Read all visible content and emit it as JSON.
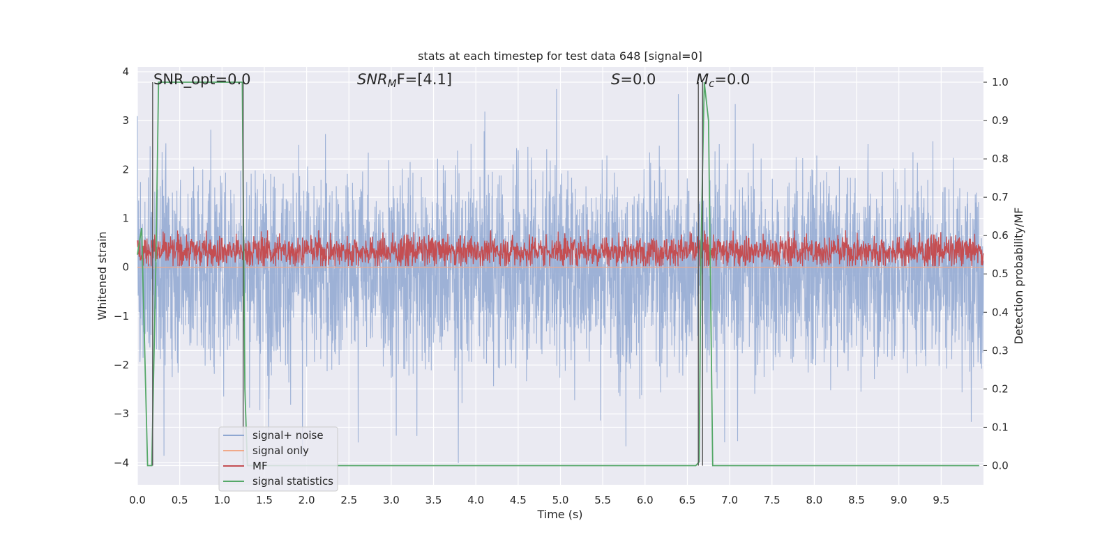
{
  "chart_data": {
    "type": "line",
    "title": "stats at each timestep for test data 648 [signal=0]",
    "xlabel": "Time (s)",
    "ylabel_left": "Whitened strain",
    "ylabel_right": "Detection probability/MF",
    "xlim": [
      0,
      10
    ],
    "ylim_left": [
      -4.45,
      4.1
    ],
    "ylim_right": [
      -0.05,
      1.04
    ],
    "grid": true,
    "legend_position": "lower-left",
    "x_ticks": [
      0.0,
      0.5,
      1.0,
      1.5,
      2.0,
      2.5,
      3.0,
      3.5,
      4.0,
      4.5,
      5.0,
      5.5,
      6.0,
      6.5,
      7.0,
      7.5,
      8.0,
      8.5,
      9.0,
      9.5
    ],
    "x_tick_labels": [
      "0.0",
      "0.5",
      "1.0",
      "1.5",
      "2.0",
      "2.5",
      "3.0",
      "3.5",
      "4.0",
      "4.5",
      "5.0",
      "5.5",
      "6.0",
      "6.5",
      "7.0",
      "7.5",
      "8.0",
      "8.5",
      "9.0",
      "9.5"
    ],
    "y_left_ticks": [
      4,
      3,
      2,
      1,
      0,
      -1,
      -2,
      -3,
      -4
    ],
    "y_left_tick_labels": [
      "4",
      "3",
      "2",
      "1",
      "0",
      "−1",
      "−2",
      "−3",
      "−4"
    ],
    "y_right_ticks": [
      1.0,
      0.9,
      0.8,
      0.7,
      0.6,
      0.5,
      0.4,
      0.3,
      0.2,
      0.1,
      0.0
    ],
    "y_right_tick_labels": [
      "1.0",
      "0.9",
      "0.8",
      "0.7",
      "0.6",
      "0.5",
      "0.4",
      "0.3",
      "0.2",
      "0.1",
      "0.0"
    ],
    "annotations": {
      "snr_opt": "SNR_opt=0.0",
      "snr_mf_italic": "SNR",
      "snr_mf_sub": "M",
      "snr_mf_rest": "F=[4.1]",
      "s_italic": "S",
      "s_rest": "=0.0",
      "mc_italic": "M",
      "mc_sub": "c",
      "mc_rest": "=0.0"
    },
    "legend": [
      {
        "label": "signal+ noise",
        "color": "#8fa7d1"
      },
      {
        "label": "signal only",
        "color": "#f0a98a"
      },
      {
        "label": "MF",
        "color": "#c44e52"
      },
      {
        "label": "signal statistics",
        "color": "#55a868"
      }
    ],
    "series": [
      {
        "name": "signal+ noise",
        "axis": "left",
        "color": "#8fa7d1",
        "form": "noise",
        "center": 0.0,
        "amplitude": 1.4,
        "extremes": [
          3.7,
          -4.05
        ]
      },
      {
        "name": "signal only",
        "axis": "left",
        "color": "#f0a98a",
        "form": "flat",
        "value": 0.0
      },
      {
        "name": "MF",
        "axis": "right",
        "color": "#c44e52",
        "form": "noise",
        "center": 0.56,
        "amplitude": 0.03,
        "extremes": [
          0.64,
          0.52
        ]
      },
      {
        "name": "signal statistics",
        "axis": "right",
        "color": "#55a868",
        "x": [
          0.0,
          0.05,
          0.12,
          0.17,
          0.22,
          0.25,
          1.24,
          1.27,
          1.3,
          6.6,
          6.64,
          6.66,
          6.7,
          6.75,
          6.8,
          6.85,
          9.95
        ],
        "y": [
          0.55,
          0.62,
          0.0,
          0.0,
          0.55,
          1.0,
          1.0,
          0.2,
          0.0,
          0.0,
          0.01,
          0.55,
          1.0,
          0.9,
          0.0,
          0.0,
          0.0
        ]
      }
    ],
    "vertical_markers_x": [
      0.18,
      1.25,
      6.63,
      6.68
    ]
  }
}
